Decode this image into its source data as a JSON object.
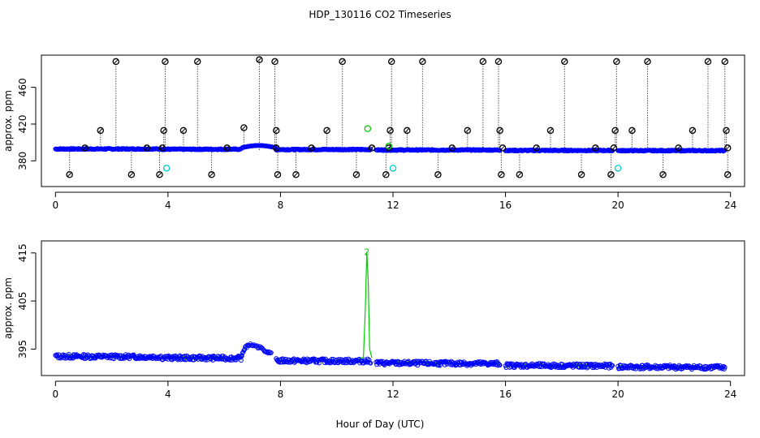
{
  "title": "HDP_130116  CO2 Timeseries",
  "xlabel": "Hour of Day (UTC)",
  "colors": {
    "outlier": "#000000",
    "main": "#0000ff",
    "highlight": "#00cc00",
    "flagged": "#00cccc"
  },
  "chart_data": [
    {
      "type": "scatter",
      "ylabel": "approx. ppm",
      "xlim": [
        -0.5,
        24.5
      ],
      "ylim": [
        352,
        495
      ],
      "xticks": [
        0,
        4,
        8,
        12,
        16,
        20,
        24
      ],
      "yticks": [
        380,
        420,
        460
      ],
      "xtick_labels": [
        "0",
        "4",
        "8",
        "12",
        "16",
        "20",
        "24"
      ],
      "ytick_labels": [
        "380",
        "420",
        "460"
      ],
      "baseline_segments": [
        {
          "x0": 0.0,
          "x1": 3.75,
          "y": 392.9
        },
        {
          "x0": 3.8,
          "x1": 6.6,
          "y": 392.6
        },
        {
          "x0": 6.65,
          "x1": 7.8,
          "y": 394.5
        },
        {
          "x0": 7.85,
          "x1": 11.2,
          "y": 392.3
        },
        {
          "x0": 11.4,
          "x1": 15.8,
          "y": 391.8
        },
        {
          "x0": 16.0,
          "x1": 19.8,
          "y": 391.3
        },
        {
          "x0": 20.0,
          "x1": 23.8,
          "y": 391.1
        }
      ],
      "outliers_high": [
        {
          "x": 2.15,
          "y": 488
        },
        {
          "x": 3.9,
          "y": 488
        },
        {
          "x": 5.05,
          "y": 488
        },
        {
          "x": 7.25,
          "y": 490
        },
        {
          "x": 7.8,
          "y": 488
        },
        {
          "x": 10.2,
          "y": 488
        },
        {
          "x": 11.95,
          "y": 488
        },
        {
          "x": 13.05,
          "y": 488
        },
        {
          "x": 15.2,
          "y": 488
        },
        {
          "x": 15.75,
          "y": 488
        },
        {
          "x": 18.1,
          "y": 488
        },
        {
          "x": 19.95,
          "y": 488
        },
        {
          "x": 21.05,
          "y": 488
        },
        {
          "x": 23.2,
          "y": 488
        },
        {
          "x": 23.8,
          "y": 488
        }
      ],
      "outliers_mid": [
        {
          "x": 1.6,
          "y": 413
        },
        {
          "x": 3.85,
          "y": 413
        },
        {
          "x": 4.55,
          "y": 413
        },
        {
          "x": 6.7,
          "y": 416
        },
        {
          "x": 7.85,
          "y": 413
        },
        {
          "x": 9.65,
          "y": 413
        },
        {
          "x": 11.9,
          "y": 413
        },
        {
          "x": 12.5,
          "y": 413
        },
        {
          "x": 14.65,
          "y": 413
        },
        {
          "x": 15.8,
          "y": 413
        },
        {
          "x": 17.6,
          "y": 413
        },
        {
          "x": 19.9,
          "y": 413
        },
        {
          "x": 20.5,
          "y": 413
        },
        {
          "x": 22.65,
          "y": 413
        },
        {
          "x": 23.85,
          "y": 413
        }
      ],
      "outliers_low": [
        {
          "x": 0.5,
          "y": 365
        },
        {
          "x": 2.7,
          "y": 365
        },
        {
          "x": 3.7,
          "y": 365
        },
        {
          "x": 5.55,
          "y": 365
        },
        {
          "x": 7.9,
          "y": 365
        },
        {
          "x": 8.55,
          "y": 365
        },
        {
          "x": 10.7,
          "y": 365
        },
        {
          "x": 11.75,
          "y": 365
        },
        {
          "x": 13.6,
          "y": 365
        },
        {
          "x": 15.85,
          "y": 365
        },
        {
          "x": 16.5,
          "y": 365
        },
        {
          "x": 18.7,
          "y": 365
        },
        {
          "x": 19.75,
          "y": 365
        },
        {
          "x": 21.6,
          "y": 365
        },
        {
          "x": 23.9,
          "y": 365
        }
      ],
      "outliers_near": [
        {
          "x": 1.05,
          "y": 394
        },
        {
          "x": 3.25,
          "y": 394
        },
        {
          "x": 3.8,
          "y": 394
        },
        {
          "x": 6.1,
          "y": 394
        },
        {
          "x": 7.85,
          "y": 394
        },
        {
          "x": 9.1,
          "y": 394
        },
        {
          "x": 11.25,
          "y": 394
        },
        {
          "x": 11.85,
          "y": 394
        },
        {
          "x": 14.1,
          "y": 394
        },
        {
          "x": 15.9,
          "y": 394
        },
        {
          "x": 17.1,
          "y": 394
        },
        {
          "x": 19.2,
          "y": 394
        },
        {
          "x": 19.85,
          "y": 394
        },
        {
          "x": 22.15,
          "y": 394
        },
        {
          "x": 23.9,
          "y": 394
        }
      ],
      "flagged_points": [
        {
          "x": 3.95,
          "y": 372
        },
        {
          "x": 12.0,
          "y": 372
        },
        {
          "x": 20.0,
          "y": 372
        }
      ],
      "highlight_points": [
        {
          "x": 11.1,
          "y": 415
        },
        {
          "x": 11.85,
          "y": 396
        }
      ]
    },
    {
      "type": "line",
      "ylabel": "approx. ppm",
      "xlim": [
        -0.5,
        24.5
      ],
      "ylim": [
        389.5,
        417.5
      ],
      "xticks": [
        0,
        4,
        8,
        12,
        16,
        20,
        24
      ],
      "yticks": [
        395,
        405,
        415
      ],
      "xtick_labels": [
        "0",
        "4",
        "8",
        "12",
        "16",
        "20",
        "24"
      ],
      "ytick_labels": [
        "395",
        "405",
        "415"
      ],
      "segments": [
        {
          "x0": 0.0,
          "x1": 3.75,
          "y": 393.5
        },
        {
          "x0": 3.8,
          "x1": 6.6,
          "y": 393.2
        },
        {
          "x0": 7.85,
          "x1": 11.2,
          "y": 392.6
        },
        {
          "x0": 11.4,
          "x1": 15.8,
          "y": 392.1
        },
        {
          "x0": 16.0,
          "x1": 19.8,
          "y": 391.6
        },
        {
          "x0": 20.0,
          "x1": 23.8,
          "y": 391.3
        }
      ],
      "bump": [
        {
          "x": 6.6,
          "y": 393.5
        },
        {
          "x": 6.75,
          "y": 395.3
        },
        {
          "x": 6.9,
          "y": 395.9
        },
        {
          "x": 7.1,
          "y": 395.7
        },
        {
          "x": 7.3,
          "y": 395.2
        },
        {
          "x": 7.5,
          "y": 394.6
        },
        {
          "x": 7.7,
          "y": 393.9
        }
      ],
      "spike": [
        {
          "x": 10.85,
          "y": 393.0
        },
        {
          "x": 10.95,
          "y": 393.4
        },
        {
          "x": 11.02,
          "y": 404.0
        },
        {
          "x": 11.07,
          "y": 415.2
        },
        {
          "x": 11.12,
          "y": 409.0
        },
        {
          "x": 11.17,
          "y": 395.0
        },
        {
          "x": 11.25,
          "y": 393.2
        }
      ],
      "spike_label": {
        "x": 11.07,
        "y": 415.2,
        "text": "2"
      }
    }
  ]
}
